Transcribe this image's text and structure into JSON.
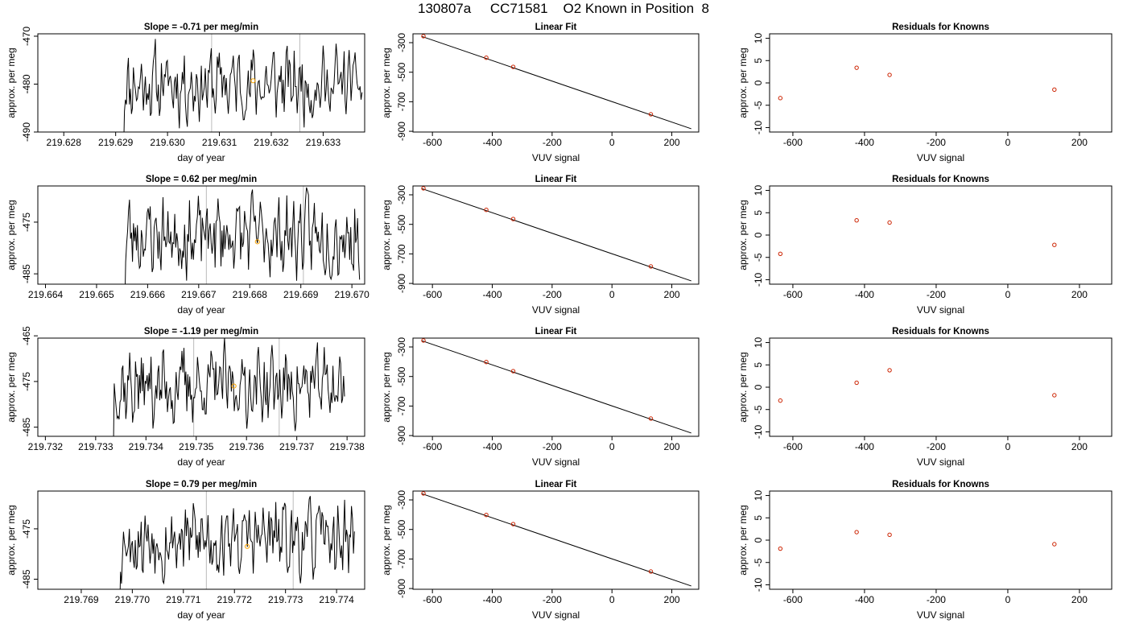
{
  "page": {
    "title": "130807a     CC71581    O2 Known in Position  8"
  },
  "chart_data": [
    {
      "type": "line",
      "title": "Slope =  -0.71  per meg/min",
      "xlabel": "day of year",
      "ylabel": "approx. per meg",
      "xlim": [
        219.6275,
        219.6338
      ],
      "ylim": [
        -490,
        -469.5
      ],
      "xticks": [
        {
          "v": 219.628,
          "t": "219.628"
        },
        {
          "v": 219.629,
          "t": "219.629"
        },
        {
          "v": 219.63,
          "t": "219.630"
        },
        {
          "v": 219.631,
          "t": "219.631"
        },
        {
          "v": 219.632,
          "t": "219.632"
        },
        {
          "v": 219.633,
          "t": "219.633"
        }
      ],
      "yticks": [
        {
          "v": -470,
          "t": "-470"
        },
        {
          "v": -480,
          "t": "-480"
        },
        {
          "v": -490,
          "t": "-490"
        }
      ],
      "vlines": [
        219.63085,
        219.63255
      ],
      "highlight": {
        "x": 219.63165,
        "y": -479.3
      },
      "trace": {
        "x0": 219.62915,
        "x1": 219.63375,
        "seed": 11,
        "mid": -480,
        "amp": 9
      }
    },
    {
      "type": "scatter",
      "title": "Linear Fit",
      "xlabel": "VUV signal",
      "ylabel": "approx. per meg",
      "xlim": [
        -665,
        290
      ],
      "ylim": [
        -905,
        -240
      ],
      "xticks": [
        {
          "v": -600,
          "t": "-600"
        },
        {
          "v": -400,
          "t": "-400"
        },
        {
          "v": -200,
          "t": "-200"
        },
        {
          "v": 0,
          "t": "0"
        },
        {
          "v": 200,
          "t": "200"
        }
      ],
      "yticks": [
        {
          "v": -300,
          "t": "-300"
        },
        {
          "v": -500,
          "t": "-500"
        },
        {
          "v": -700,
          "t": "-700"
        },
        {
          "v": -900,
          "t": "-900"
        }
      ],
      "fit": {
        "x": [
          -635,
          265
        ],
        "y": [
          -258,
          -883
        ]
      },
      "points": [
        {
          "x": -630,
          "y": -256
        },
        {
          "x": -420,
          "y": -402
        },
        {
          "x": -330,
          "y": -464
        },
        {
          "x": 130,
          "y": -785
        }
      ]
    },
    {
      "type": "scatter",
      "title": "Residuals for Knowns",
      "xlabel": "VUV signal",
      "ylabel": "approx. per meg",
      "xlim": [
        -665,
        290
      ],
      "ylim": [
        -11,
        11
      ],
      "xticks": [
        {
          "v": -600,
          "t": "-600"
        },
        {
          "v": -400,
          "t": "-400"
        },
        {
          "v": -200,
          "t": "-200"
        },
        {
          "v": 0,
          "t": "0"
        },
        {
          "v": 200,
          "t": "200"
        }
      ],
      "yticks": [
        {
          "v": 10,
          "t": "10"
        },
        {
          "v": 5,
          "t": "5"
        },
        {
          "v": 0,
          "t": "0"
        },
        {
          "v": -5,
          "t": "-5"
        },
        {
          "v": -10,
          "t": "-10"
        }
      ],
      "points": [
        {
          "x": -635,
          "y": -3.4
        },
        {
          "x": -422,
          "y": 3.4
        },
        {
          "x": -330,
          "y": 1.8
        },
        {
          "x": 130,
          "y": -1.5
        }
      ]
    },
    {
      "type": "line",
      "title": "Slope =  0.62  per meg/min",
      "xlabel": "day of year",
      "ylabel": "approx. per meg",
      "xlim": [
        219.66385,
        219.67025
      ],
      "ylim": [
        -487,
        -468
      ],
      "xticks": [
        {
          "v": 219.664,
          "t": "219.664"
        },
        {
          "v": 219.665,
          "t": "219.665"
        },
        {
          "v": 219.666,
          "t": "219.666"
        },
        {
          "v": 219.667,
          "t": "219.667"
        },
        {
          "v": 219.668,
          "t": "219.668"
        },
        {
          "v": 219.669,
          "t": "219.669"
        },
        {
          "v": 219.67,
          "t": "219.670"
        }
      ],
      "yticks": [
        {
          "v": -475,
          "t": "-475"
        },
        {
          "v": -485,
          "t": "-485"
        }
      ],
      "vlines": [
        219.66715,
        219.66905
      ],
      "highlight": {
        "x": 219.66815,
        "y": -478.8
      },
      "trace": {
        "x0": 219.66555,
        "x1": 219.67015,
        "seed": 23,
        "mid": -477.5,
        "amp": 9
      }
    },
    {
      "type": "scatter",
      "title": "Linear Fit",
      "xlabel": "VUV signal",
      "ylabel": "approx. per meg",
      "xlim": [
        -665,
        290
      ],
      "ylim": [
        -905,
        -240
      ],
      "xticks": [
        {
          "v": -600,
          "t": "-600"
        },
        {
          "v": -400,
          "t": "-400"
        },
        {
          "v": -200,
          "t": "-200"
        },
        {
          "v": 0,
          "t": "0"
        },
        {
          "v": 200,
          "t": "200"
        }
      ],
      "yticks": [
        {
          "v": -300,
          "t": "-300"
        },
        {
          "v": -500,
          "t": "-500"
        },
        {
          "v": -700,
          "t": "-700"
        },
        {
          "v": -900,
          "t": "-900"
        }
      ],
      "fit": {
        "x": [
          -635,
          265
        ],
        "y": [
          -258,
          -883
        ]
      },
      "points": [
        {
          "x": -630,
          "y": -256
        },
        {
          "x": -420,
          "y": -402
        },
        {
          "x": -330,
          "y": -464
        },
        {
          "x": 130,
          "y": -785
        }
      ]
    },
    {
      "type": "scatter",
      "title": "Residuals for Knowns",
      "xlabel": "VUV signal",
      "ylabel": "approx. per meg",
      "xlim": [
        -665,
        290
      ],
      "ylim": [
        -11,
        11
      ],
      "xticks": [
        {
          "v": -600,
          "t": "-600"
        },
        {
          "v": -400,
          "t": "-400"
        },
        {
          "v": -200,
          "t": "-200"
        },
        {
          "v": 0,
          "t": "0"
        },
        {
          "v": 200,
          "t": "200"
        }
      ],
      "yticks": [
        {
          "v": 10,
          "t": "10"
        },
        {
          "v": 5,
          "t": "5"
        },
        {
          "v": 0,
          "t": "0"
        },
        {
          "v": -5,
          "t": "-5"
        },
        {
          "v": -10,
          "t": "-10"
        }
      ],
      "points": [
        {
          "x": -635,
          "y": -4.2
        },
        {
          "x": -422,
          "y": 3.3
        },
        {
          "x": -330,
          "y": 2.8
        },
        {
          "x": 130,
          "y": -2.2
        }
      ]
    },
    {
      "type": "line",
      "title": "Slope =  -1.19  per meg/min",
      "xlabel": "day of year",
      "ylabel": "approx. per meg",
      "xlim": [
        219.73185,
        219.73835
      ],
      "ylim": [
        -487,
        -465.5
      ],
      "xticks": [
        {
          "v": 219.732,
          "t": "219.732"
        },
        {
          "v": 219.733,
          "t": "219.733"
        },
        {
          "v": 219.734,
          "t": "219.734"
        },
        {
          "v": 219.735,
          "t": "219.735"
        },
        {
          "v": 219.736,
          "t": "219.736"
        },
        {
          "v": 219.737,
          "t": "219.737"
        },
        {
          "v": 219.738,
          "t": "219.738"
        }
      ],
      "yticks": [
        {
          "v": -465,
          "t": "-465"
        },
        {
          "v": -475,
          "t": "-475"
        },
        {
          "v": -485,
          "t": "-485"
        }
      ],
      "vlines": [
        219.73495,
        219.73665
      ],
      "highlight": {
        "x": 219.73575,
        "y": -476
      },
      "trace": {
        "x0": 219.73335,
        "x1": 219.73795,
        "seed": 37,
        "mid": -476,
        "amp": 10
      }
    },
    {
      "type": "scatter",
      "title": "Linear Fit",
      "xlabel": "VUV signal",
      "ylabel": "approx. per meg",
      "xlim": [
        -665,
        290
      ],
      "ylim": [
        -905,
        -240
      ],
      "xticks": [
        {
          "v": -600,
          "t": "-600"
        },
        {
          "v": -400,
          "t": "-400"
        },
        {
          "v": -200,
          "t": "-200"
        },
        {
          "v": 0,
          "t": "0"
        },
        {
          "v": 200,
          "t": "200"
        }
      ],
      "yticks": [
        {
          "v": -300,
          "t": "-300"
        },
        {
          "v": -500,
          "t": "-500"
        },
        {
          "v": -700,
          "t": "-700"
        },
        {
          "v": -900,
          "t": "-900"
        }
      ],
      "fit": {
        "x": [
          -635,
          265
        ],
        "y": [
          -258,
          -883
        ]
      },
      "points": [
        {
          "x": -630,
          "y": -256
        },
        {
          "x": -420,
          "y": -402
        },
        {
          "x": -330,
          "y": -464
        },
        {
          "x": 130,
          "y": -785
        }
      ]
    },
    {
      "type": "scatter",
      "title": "Residuals for Knowns",
      "xlabel": "VUV signal",
      "ylabel": "approx. per meg",
      "xlim": [
        -665,
        290
      ],
      "ylim": [
        -11,
        11
      ],
      "xticks": [
        {
          "v": -600,
          "t": "-600"
        },
        {
          "v": -400,
          "t": "-400"
        },
        {
          "v": -200,
          "t": "-200"
        },
        {
          "v": 0,
          "t": "0"
        },
        {
          "v": 200,
          "t": "200"
        }
      ],
      "yticks": [
        {
          "v": 10,
          "t": "10"
        },
        {
          "v": 5,
          "t": "5"
        },
        {
          "v": 0,
          "t": "0"
        },
        {
          "v": -5,
          "t": "-5"
        },
        {
          "v": -10,
          "t": "-10"
        }
      ],
      "points": [
        {
          "x": -635,
          "y": -3.0
        },
        {
          "x": -422,
          "y": 1.0
        },
        {
          "x": -330,
          "y": 3.8
        },
        {
          "x": 130,
          "y": -1.8
        }
      ]
    },
    {
      "type": "line",
      "title": "Slope =  0.79  per meg/min",
      "xlabel": "day of year",
      "ylabel": "approx. per meg",
      "xlim": [
        219.76815,
        219.77455
      ],
      "ylim": [
        -487,
        -467.5
      ],
      "xticks": [
        {
          "v": 219.769,
          "t": "219.769"
        },
        {
          "v": 219.77,
          "t": "219.770"
        },
        {
          "v": 219.771,
          "t": "219.771"
        },
        {
          "v": 219.772,
          "t": "219.772"
        },
        {
          "v": 219.773,
          "t": "219.773"
        },
        {
          "v": 219.774,
          "t": "219.774"
        }
      ],
      "yticks": [
        {
          "v": -475,
          "t": "-475"
        },
        {
          "v": -485,
          "t": "-485"
        }
      ],
      "vlines": [
        219.77145,
        219.77315
      ],
      "highlight": {
        "x": 219.77225,
        "y": -478.5
      },
      "trace": {
        "x0": 219.76975,
        "x1": 219.77435,
        "seed": 53,
        "mid": -477,
        "amp": 9
      }
    },
    {
      "type": "scatter",
      "title": "Linear Fit",
      "xlabel": "VUV signal",
      "ylabel": "approx. per meg",
      "xlim": [
        -665,
        290
      ],
      "ylim": [
        -905,
        -240
      ],
      "xticks": [
        {
          "v": -600,
          "t": "-600"
        },
        {
          "v": -400,
          "t": "-400"
        },
        {
          "v": -200,
          "t": "-200"
        },
        {
          "v": 0,
          "t": "0"
        },
        {
          "v": 200,
          "t": "200"
        }
      ],
      "yticks": [
        {
          "v": -300,
          "t": "-300"
        },
        {
          "v": -500,
          "t": "-500"
        },
        {
          "v": -700,
          "t": "-700"
        },
        {
          "v": -900,
          "t": "-900"
        }
      ],
      "fit": {
        "x": [
          -635,
          265
        ],
        "y": [
          -258,
          -883
        ]
      },
      "points": [
        {
          "x": -630,
          "y": -256
        },
        {
          "x": -420,
          "y": -402
        },
        {
          "x": -330,
          "y": -464
        },
        {
          "x": 130,
          "y": -785
        }
      ]
    },
    {
      "type": "scatter",
      "title": "Residuals for Knowns",
      "xlabel": "VUV signal",
      "ylabel": "approx. per meg",
      "xlim": [
        -665,
        290
      ],
      "ylim": [
        -11,
        11
      ],
      "xticks": [
        {
          "v": -600,
          "t": "-600"
        },
        {
          "v": -400,
          "t": "-400"
        },
        {
          "v": -200,
          "t": "-200"
        },
        {
          "v": 0,
          "t": "0"
        },
        {
          "v": 200,
          "t": "200"
        }
      ],
      "yticks": [
        {
          "v": 10,
          "t": "10"
        },
        {
          "v": 5,
          "t": "5"
        },
        {
          "v": 0,
          "t": "0"
        },
        {
          "v": -5,
          "t": "-5"
        },
        {
          "v": -10,
          "t": "-10"
        }
      ],
      "points": [
        {
          "x": -635,
          "y": -1.9
        },
        {
          "x": -422,
          "y": 1.8
        },
        {
          "x": -330,
          "y": 1.2
        },
        {
          "x": 130,
          "y": -0.9
        }
      ]
    }
  ],
  "colors": {
    "trace": "#000000",
    "fit_line": "#000000",
    "point": "#cc2200",
    "highlight": "#ffa500",
    "vline": "#bbbbbb",
    "frame": "#000000"
  }
}
